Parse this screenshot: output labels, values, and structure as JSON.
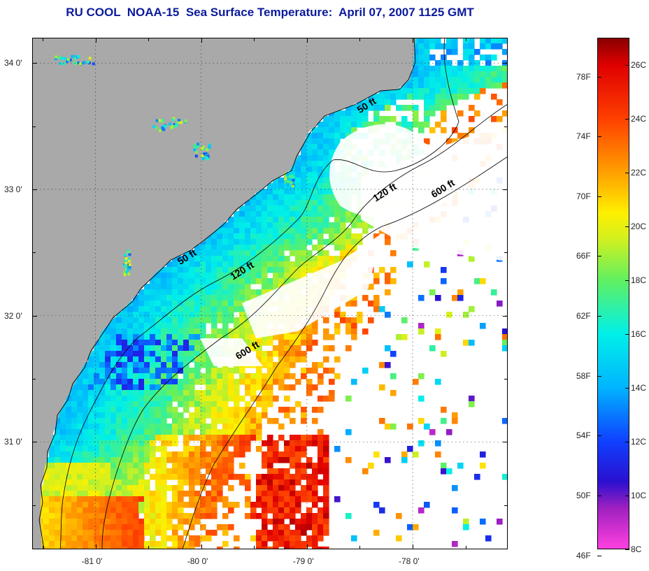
{
  "title": "RU COOL  NOAA-15  Sea Surface Temperature:  April 07, 2007 1125 GMT",
  "map": {
    "lat_range": [
      30.15,
      34.2
    ],
    "lon_range": [
      -81.6,
      -77.1
    ],
    "land_color": "#a9a9a9",
    "cloud_color": "#ffffff",
    "lat_labels": [
      {
        "lat": 34.0,
        "text": "34 0'"
      },
      {
        "lat": 33.0,
        "text": "33 0'"
      },
      {
        "lat": 32.0,
        "text": "32 0'"
      },
      {
        "lat": 31.0,
        "text": "31 0'"
      }
    ],
    "lat_minor": [
      33.5,
      32.5,
      31.5,
      30.5
    ],
    "lon_labels": [
      {
        "lon": -81.0,
        "text": "-81 0'"
      },
      {
        "lon": -80.0,
        "text": "-80 0'"
      },
      {
        "lon": -79.0,
        "text": "-79 0'"
      },
      {
        "lon": -78.0,
        "text": "-78 0'"
      }
    ],
    "lon_minor": [
      -81.5,
      -80.5,
      -79.5,
      -78.5,
      -77.5
    ],
    "contour_labels": [
      {
        "text": "50 ft",
        "lon": -78.5,
        "lat": 33.6
      },
      {
        "text": "120 ft",
        "lon": -78.35,
        "lat": 32.9
      },
      {
        "text": "600 ft",
        "lon": -77.8,
        "lat": 32.93
      },
      {
        "text": "50 ft",
        "lon": -80.2,
        "lat": 32.4
      },
      {
        "text": "120 ft",
        "lon": -79.7,
        "lat": 32.28
      },
      {
        "text": "600 ft",
        "lon": -79.65,
        "lat": 31.65
      }
    ]
  },
  "colorbar": {
    "range_c": [
      8,
      27
    ],
    "celsius_labels": [
      "26C",
      "24C",
      "22C",
      "20C",
      "18C",
      "16C",
      "14C",
      "12C",
      "10C",
      "8C"
    ],
    "celsius_values": [
      26,
      24,
      22,
      20,
      18,
      16,
      14,
      12,
      10,
      8
    ],
    "fahrenheit_labels": [
      "78F",
      "74F",
      "70F",
      "66F",
      "62F",
      "58F",
      "54F",
      "50F",
      "46F"
    ],
    "fahrenheit_values": [
      78,
      74,
      70,
      66,
      62,
      58,
      54,
      50,
      46
    ],
    "stops": [
      {
        "c": 8,
        "color": "#ff40e0"
      },
      {
        "c": 9.5,
        "color": "#a020c0"
      },
      {
        "c": 10.5,
        "color": "#2a10d0"
      },
      {
        "c": 12,
        "color": "#1040ff"
      },
      {
        "c": 14,
        "color": "#00b4ff"
      },
      {
        "c": 16,
        "color": "#00f0e8"
      },
      {
        "c": 18,
        "color": "#60f060"
      },
      {
        "c": 19.5,
        "color": "#d0f020"
      },
      {
        "c": 20.5,
        "color": "#fff000"
      },
      {
        "c": 22,
        "color": "#ffa000"
      },
      {
        "c": 24,
        "color": "#ff4000"
      },
      {
        "c": 26,
        "color": "#e00000"
      },
      {
        "c": 27,
        "color": "#8a0000"
      }
    ]
  }
}
